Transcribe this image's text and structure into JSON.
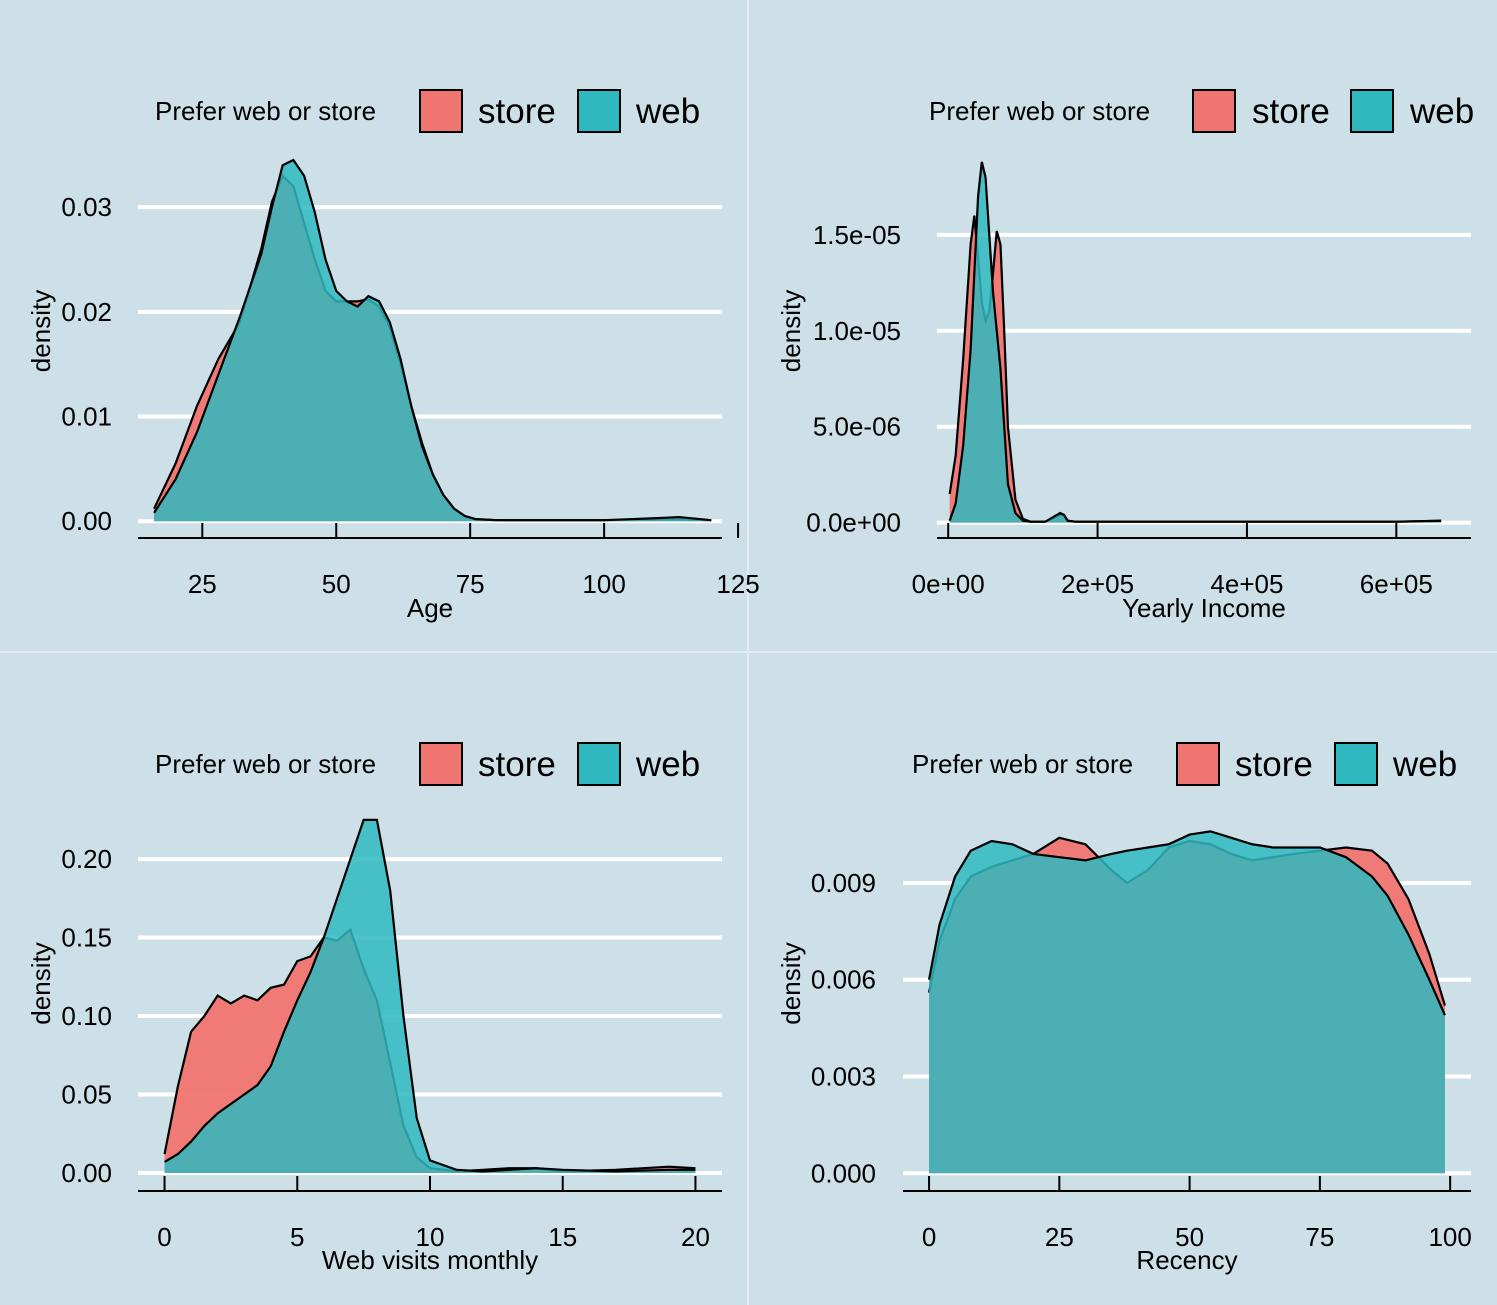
{
  "colors": {
    "store": "#f07470",
    "web": "#2fb8bf",
    "background": "#cde0e7"
  },
  "legend": {
    "title": "Prefer web or store",
    "labels": [
      "store",
      "web"
    ]
  },
  "chart_data": [
    {
      "type": "area",
      "xlabel": "Age",
      "ylabel": "density",
      "xlim": [
        13,
        122
      ],
      "ylim": [
        -0.0016,
        0.0345
      ],
      "xticks": [
        25,
        50,
        75,
        100,
        125
      ],
      "xtick_labels": [
        "25",
        "50",
        "75",
        "100",
        "125"
      ],
      "yticks": [
        0.0,
        0.01,
        0.02,
        0.03
      ],
      "ytick_labels": [
        "0.00",
        "0.01",
        "0.02",
        "0.03"
      ],
      "grid": true,
      "legend_position": "top",
      "series": [
        {
          "name": "store",
          "x": [
            16,
            20,
            24,
            28,
            32,
            36,
            38,
            40,
            42,
            44,
            46,
            48,
            50,
            52,
            54,
            56,
            58,
            60,
            62,
            64,
            66,
            68,
            70,
            72,
            74,
            76,
            80,
            90,
            100,
            110,
            114,
            120
          ],
          "y": [
            0.0012,
            0.0055,
            0.011,
            0.0155,
            0.019,
            0.026,
            0.0305,
            0.033,
            0.032,
            0.0285,
            0.025,
            0.022,
            0.021,
            0.021,
            0.021,
            0.0212,
            0.0205,
            0.0185,
            0.015,
            0.011,
            0.0075,
            0.0045,
            0.0025,
            0.0012,
            0.0005,
            0.0002,
            0.0001,
            0.0001,
            0.0001,
            0.0002,
            0.0002,
            0.0001
          ]
        },
        {
          "name": "web",
          "x": [
            16,
            20,
            24,
            28,
            32,
            36,
            38,
            40,
            42,
            44,
            46,
            48,
            50,
            52,
            54,
            56,
            58,
            60,
            62,
            64,
            66,
            68,
            70,
            72,
            74,
            76,
            80,
            90,
            100,
            110,
            114,
            120
          ],
          "y": [
            0.0008,
            0.004,
            0.0085,
            0.014,
            0.0195,
            0.0255,
            0.03,
            0.034,
            0.0345,
            0.033,
            0.0295,
            0.025,
            0.022,
            0.021,
            0.0205,
            0.0215,
            0.021,
            0.019,
            0.0155,
            0.011,
            0.0072,
            0.0045,
            0.0025,
            0.0012,
            0.0005,
            0.0002,
            0.0001,
            0.0001,
            0.0001,
            0.0003,
            0.0004,
            0.0001
          ]
        }
      ]
    },
    {
      "type": "area",
      "xlabel": "Yearly Income",
      "ylabel": "density",
      "xlim": [
        -15000,
        700000
      ],
      "ylim": [
        -8e-07,
        1.89e-05
      ],
      "xticks": [
        0,
        200000,
        400000,
        600000
      ],
      "xtick_labels": [
        "0e+00",
        "2e+05",
        "4e+05",
        "6e+05"
      ],
      "yticks": [
        0.0,
        5e-06,
        1e-05,
        1.5e-05
      ],
      "ytick_labels": [
        "0.0e+00",
        "5.0e-06",
        "1.0e-05",
        "1.5e-05"
      ],
      "grid": true,
      "legend_position": "top",
      "series": [
        {
          "name": "store",
          "x": [
            2000,
            10000,
            20000,
            30000,
            35000,
            40000,
            45000,
            50000,
            55000,
            60000,
            65000,
            70000,
            75000,
            80000,
            90000,
            100000,
            110000,
            130000,
            150000,
            155000,
            160000,
            170000,
            200000,
            300000,
            400000,
            500000,
            600000,
            660000
          ],
          "y": [
            1.5e-06,
            3.5e-06,
            8.5e-06,
            1.45e-05,
            1.6e-05,
            1.38e-05,
            1.15e-05,
            1.05e-05,
            1.1e-05,
            1.3e-05,
            1.52e-05,
            1.45e-05,
            1e-05,
            5e-06,
            1.2e-06,
            2e-07,
            5e-08,
            5e-08,
            4e-07,
            4e-07,
            1e-07,
            5e-08,
            5e-08,
            5e-08,
            5e-08,
            5e-08,
            5e-08,
            1e-07
          ]
        },
        {
          "name": "web",
          "x": [
            2000,
            10000,
            20000,
            30000,
            35000,
            40000,
            45000,
            50000,
            55000,
            60000,
            65000,
            70000,
            75000,
            80000,
            90000,
            100000,
            110000,
            130000,
            150000,
            155000,
            160000,
            170000,
            200000,
            300000,
            400000,
            500000,
            600000,
            660000
          ],
          "y": [
            1e-07,
            1e-06,
            4e-06,
            9e-06,
            1.3e-05,
            1.7e-05,
            1.88e-05,
            1.8e-05,
            1.5e-05,
            1.2e-05,
            1e-05,
            8e-06,
            5e-06,
            2e-06,
            5e-07,
            1e-07,
            5e-08,
            5e-08,
            5e-07,
            4e-07,
            1e-07,
            5e-08,
            5e-08,
            5e-08,
            5e-08,
            5e-08,
            5e-08,
            1e-07
          ]
        }
      ]
    },
    {
      "type": "area",
      "xlabel": "Web visits monthly",
      "ylabel": "density",
      "xlim": [
        -1,
        21
      ],
      "ylim": [
        -0.0115,
        0.23
      ],
      "xticks": [
        0,
        5,
        10,
        15,
        20
      ],
      "xtick_labels": [
        "0",
        "5",
        "10",
        "15",
        "20"
      ],
      "yticks": [
        0.0,
        0.05,
        0.1,
        0.15,
        0.2
      ],
      "ytick_labels": [
        "0.00",
        "0.05",
        "0.10",
        "0.15",
        "0.20"
      ],
      "grid": true,
      "legend_position": "top",
      "series": [
        {
          "name": "store",
          "x": [
            0,
            0.5,
            1,
            1.5,
            2,
            2.5,
            3,
            3.5,
            4,
            4.5,
            5,
            5.5,
            6,
            6.5,
            7,
            7.5,
            8,
            8.5,
            9,
            9.5,
            10,
            11,
            12,
            13,
            14,
            15,
            17,
            19,
            20
          ],
          "y": [
            0.012,
            0.055,
            0.09,
            0.1,
            0.113,
            0.108,
            0.113,
            0.11,
            0.118,
            0.12,
            0.135,
            0.138,
            0.15,
            0.148,
            0.155,
            0.13,
            0.11,
            0.07,
            0.03,
            0.01,
            0.003,
            0.001,
            0.002,
            0.003,
            0.003,
            0.001,
            0.002,
            0.004,
            0.003
          ]
        },
        {
          "name": "web",
          "x": [
            0,
            0.5,
            1,
            1.5,
            2,
            2.5,
            3,
            3.5,
            4,
            4.5,
            5,
            5.5,
            6,
            6.5,
            7,
            7.5,
            8,
            8.5,
            9,
            9.5,
            10,
            11,
            12,
            13,
            14,
            15,
            17,
            19,
            20
          ],
          "y": [
            0.007,
            0.012,
            0.02,
            0.03,
            0.038,
            0.044,
            0.05,
            0.056,
            0.068,
            0.09,
            0.11,
            0.128,
            0.15,
            0.175,
            0.2,
            0.225,
            0.225,
            0.18,
            0.1,
            0.035,
            0.008,
            0.002,
            0.001,
            0.002,
            0.003,
            0.002,
            0.001,
            0.002,
            0.002
          ]
        }
      ]
    },
    {
      "type": "area",
      "xlabel": "Recency",
      "ylabel": "density",
      "xlim": [
        -5,
        104
      ],
      "ylim": [
        -0.00055,
        0.0112
      ],
      "xticks": [
        0,
        25,
        50,
        75,
        100
      ],
      "xtick_labels": [
        "0",
        "25",
        "50",
        "75",
        "100"
      ],
      "yticks": [
        0.0,
        0.003,
        0.006,
        0.009
      ],
      "ytick_labels": [
        "0.000",
        "0.003",
        "0.006",
        "0.009"
      ],
      "grid": true,
      "legend_position": "top",
      "series": [
        {
          "name": "store",
          "x": [
            0,
            2,
            5,
            8,
            12,
            16,
            20,
            25,
            30,
            35,
            38,
            42,
            46,
            50,
            54,
            58,
            62,
            66,
            70,
            75,
            80,
            85,
            88,
            92,
            96,
            99
          ],
          "y": [
            0.0056,
            0.0072,
            0.0085,
            0.0092,
            0.0095,
            0.0097,
            0.0099,
            0.0104,
            0.0102,
            0.0094,
            0.009,
            0.0094,
            0.0101,
            0.0103,
            0.0102,
            0.0099,
            0.0097,
            0.0098,
            0.0099,
            0.01,
            0.0101,
            0.01,
            0.0096,
            0.0085,
            0.0068,
            0.0052
          ]
        },
        {
          "name": "web",
          "x": [
            0,
            2,
            5,
            8,
            12,
            16,
            20,
            25,
            30,
            35,
            38,
            42,
            46,
            50,
            54,
            58,
            62,
            66,
            70,
            75,
            80,
            85,
            88,
            92,
            96,
            99
          ],
          "y": [
            0.006,
            0.0077,
            0.0092,
            0.01,
            0.0103,
            0.0102,
            0.0099,
            0.0098,
            0.0097,
            0.0099,
            0.01,
            0.0101,
            0.0102,
            0.0105,
            0.0106,
            0.0104,
            0.0102,
            0.0101,
            0.0101,
            0.0101,
            0.0098,
            0.0092,
            0.0086,
            0.0074,
            0.006,
            0.0049
          ]
        }
      ]
    }
  ]
}
